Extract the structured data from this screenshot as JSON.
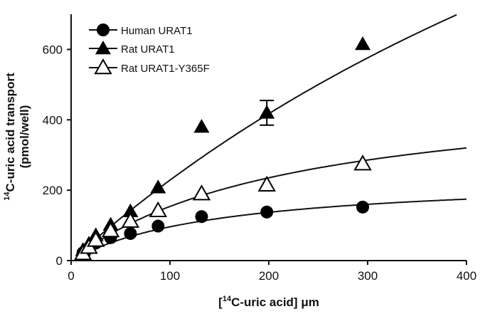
{
  "chart_data": {
    "type": "scatter",
    "xlabel": {
      "sup": "14",
      "pre": "[",
      "main": "C-uric acid] μm"
    },
    "ylabel": {
      "sup": "14",
      "line1": "C-uric acid transport",
      "line2": "(pmol/well)"
    },
    "xlim": [
      0,
      400
    ],
    "ylim": [
      0,
      700
    ],
    "x_ticks": [
      0,
      100,
      200,
      300,
      400
    ],
    "y_ticks": [
      0,
      200,
      400,
      600
    ],
    "grid": false,
    "legend_position": "top-left",
    "series": [
      {
        "name": "Human URAT1",
        "marker": "filled-circle",
        "color": "#000000",
        "points": [
          [
            12,
            22
          ],
          [
            18,
            35
          ],
          [
            25,
            50
          ],
          [
            40,
            65
          ],
          [
            60,
            77
          ],
          [
            88,
            98
          ],
          [
            132,
            125
          ],
          [
            198,
            138
          ],
          [
            295,
            152
          ]
        ],
        "fit": {
          "vmax": 240,
          "km": 150
        }
      },
      {
        "name": "Rat URAT1",
        "marker": "filled-triangle",
        "color": "#000000",
        "points": [
          [
            12,
            30
          ],
          [
            18,
            48
          ],
          [
            25,
            72
          ],
          [
            40,
            102
          ],
          [
            60,
            140
          ],
          [
            88,
            208
          ],
          [
            132,
            380
          ],
          [
            198,
            420
          ],
          [
            295,
            615
          ]
        ],
        "error_bars": [
          {
            "x": 198,
            "low": 385,
            "high": 455
          }
        ],
        "fit": {
          "vmax": 2400,
          "km": 950
        }
      },
      {
        "name": "Rat URAT1-Y365F",
        "marker": "open-triangle",
        "color": "#000000",
        "points": [
          [
            12,
            20
          ],
          [
            18,
            38
          ],
          [
            25,
            58
          ],
          [
            40,
            85
          ],
          [
            60,
            112
          ],
          [
            88,
            142
          ],
          [
            132,
            190
          ],
          [
            198,
            215
          ],
          [
            295,
            275
          ]
        ],
        "fit": {
          "vmax": 500,
          "km": 225
        }
      }
    ]
  }
}
